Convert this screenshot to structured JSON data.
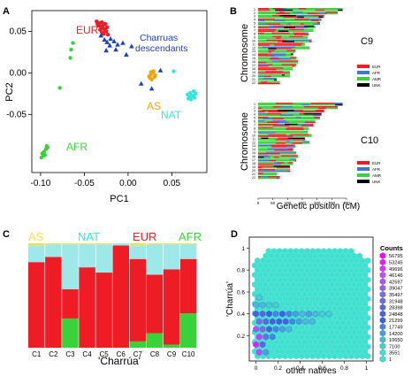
{
  "panel_letters": {
    "a": "A",
    "b": "B",
    "c": "C",
    "d": "D"
  },
  "colors": {
    "EUR": "#ee1c25",
    "AFR": "#39d23a",
    "AS": "#f4a30f",
    "NAT": "#33e6df",
    "Charruas": "#1f3fbf",
    "UNK": "#000000"
  },
  "chart_data": [
    {
      "panel": "A",
      "type": "scatter",
      "xlabel": "PC1",
      "ylabel": "PC2",
      "xlim": [
        -0.11,
        0.09
      ],
      "ylim": [
        -0.12,
        0.075
      ],
      "xticks": [
        -0.1,
        -0.05,
        0.0,
        0.05
      ],
      "xtick_labels": [
        "-0.10",
        "-0.05",
        "0.00",
        "0.05"
      ],
      "yticks": [
        -0.05,
        0.0,
        0.05
      ],
      "ytick_labels": [
        "-0.05",
        "0.00",
        "0.05"
      ],
      "labels": [
        {
          "text": "EUR",
          "color": "#ee1c25"
        },
        {
          "text": "Charruas\ndescendants",
          "color": "#1f3fbf"
        },
        {
          "text": "AS",
          "color": "#f4a30f"
        },
        {
          "text": "NAT",
          "color": "#33e6df"
        },
        {
          "text": "AFR",
          "color": "#39d23a"
        }
      ],
      "series": [
        {
          "group": "EUR",
          "marker": "circle",
          "color": "#ee1c25",
          "x": [
            -0.036,
            -0.033,
            -0.03,
            -0.028,
            -0.026,
            -0.024,
            -0.034,
            -0.031,
            -0.029,
            -0.027,
            -0.025,
            -0.032,
            -0.03,
            -0.028,
            -0.026,
            -0.035,
            -0.023
          ],
          "y": [
            0.062,
            0.06,
            0.061,
            0.058,
            0.059,
            0.055,
            0.057,
            0.056,
            0.054,
            0.053,
            0.05,
            0.052,
            0.049,
            0.047,
            0.051,
            0.059,
            0.046
          ]
        },
        {
          "group": "Charruas",
          "marker": "triangle",
          "color": "#1f3fbf",
          "x": [
            -0.031,
            -0.027,
            -0.024,
            -0.021,
            -0.02,
            -0.016,
            -0.012,
            -0.006,
            0.004,
            -0.002,
            -0.025,
            0.037,
            0.015,
            0.027,
            -0.014
          ],
          "y": [
            0.045,
            0.04,
            0.037,
            0.033,
            0.041,
            0.038,
            0.034,
            0.036,
            0.032,
            0.022,
            0.027,
            0.003,
            -0.013,
            -0.019,
            0.028
          ]
        },
        {
          "group": "AS",
          "marker": "circle",
          "color": "#f4a30f",
          "x": [
            0.024,
            0.026,
            0.028,
            0.03,
            0.027,
            0.025,
            0.029,
            0.031,
            0.026
          ],
          "y": [
            -0.004,
            -0.002,
            0.0,
            -0.005,
            -0.008,
            -0.006,
            0.002,
            -0.003,
            0.001
          ]
        },
        {
          "group": "NAT",
          "marker": "circle",
          "color": "#33e6df",
          "x": [
            0.068,
            0.071,
            0.074,
            0.076,
            0.072,
            0.07,
            0.075,
            0.073,
            0.069,
            0.077,
            0.052
          ],
          "y": [
            -0.026,
            -0.024,
            -0.028,
            -0.03,
            -0.032,
            -0.029,
            -0.022,
            -0.027,
            -0.031,
            -0.025,
            0.002
          ]
        },
        {
          "group": "AFR",
          "marker": "circle",
          "color": "#39d23a",
          "x": [
            -0.098,
            -0.096,
            -0.094,
            -0.093,
            -0.097,
            -0.095,
            -0.099,
            -0.092,
            -0.065,
            -0.063,
            -0.066,
            -0.078
          ],
          "y": [
            -0.097,
            -0.095,
            -0.092,
            -0.088,
            -0.1,
            -0.099,
            -0.102,
            -0.09,
            0.028,
            0.036,
            0.018,
            -0.018
          ]
        }
      ]
    },
    {
      "panel": "B",
      "type": "bar",
      "subtype": "chromosome-painting",
      "ylabel": "Chromosome",
      "xlabel": "Genetic position (cM)",
      "xlim": [
        0,
        300
      ],
      "xticks": [
        0,
        50,
        100,
        150,
        200,
        250,
        300
      ],
      "chromosomes": [
        "1",
        "2",
        "3",
        "4",
        "5",
        "6",
        "7",
        "8",
        "9",
        "10",
        "11",
        "12",
        "13",
        "14",
        "15",
        "16",
        "17",
        "18",
        "19",
        "20",
        "21",
        "22"
      ],
      "chromosome_lengths_cM": [
        286,
        269,
        223,
        214,
        209,
        193,
        187,
        170,
        168,
        181,
        158,
        174,
        126,
        118,
        128,
        134,
        128,
        117,
        107,
        108,
        62,
        73
      ],
      "legend": [
        "EUR",
        "AFR",
        "AMR",
        "UNK"
      ],
      "legend_colors": [
        "#ee1c25",
        "#3f76d6",
        "#39d23a",
        "#000000"
      ],
      "samples": [
        {
          "name": "C9",
          "pattern": [
            0.18,
            0.12,
            0.24,
            0.1,
            0.14,
            0.22
          ]
        },
        {
          "name": "C10",
          "pattern": [
            0.2,
            0.1,
            0.16,
            0.14,
            0.22,
            0.18
          ]
        }
      ]
    },
    {
      "panel": "C",
      "type": "bar",
      "subtype": "stacked",
      "xlabel": "'Charrúa'",
      "categories": [
        "C1",
        "C2",
        "C3",
        "C4",
        "C5",
        "C6",
        "C7",
        "C8",
        "C9",
        "C10"
      ],
      "header_labels": [
        {
          "text": "AS",
          "color": "#f4e04a"
        },
        {
          "text": "NAT",
          "color": "#33e6df"
        },
        {
          "text": "EUR",
          "color": "#ee1c25"
        },
        {
          "text": "AFR",
          "color": "#39d23a"
        }
      ],
      "series": [
        {
          "name": "AFR",
          "color": "#39d23a",
          "values": [
            0.0,
            0.0,
            0.28,
            0.0,
            0.0,
            0.0,
            0.06,
            0.14,
            0.03,
            0.33
          ]
        },
        {
          "name": "EUR",
          "color": "#ee1c25",
          "values": [
            0.82,
            0.87,
            0.28,
            0.77,
            0.72,
            0.98,
            0.79,
            0.56,
            0.72,
            0.52
          ]
        },
        {
          "name": "NAT",
          "color": "#9ee8ea",
          "values": [
            0.16,
            0.12,
            0.43,
            0.22,
            0.27,
            0.02,
            0.13,
            0.29,
            0.24,
            0.14
          ]
        },
        {
          "name": "AS",
          "color": "#f4e04a",
          "values": [
            0.02,
            0.01,
            0.01,
            0.01,
            0.01,
            0.0,
            0.02,
            0.01,
            0.01,
            0.01
          ]
        }
      ]
    },
    {
      "panel": "D",
      "type": "heatmap",
      "subtype": "hexbin",
      "xlabel": "other natives",
      "ylabel": "'Charrúa'",
      "xlim": [
        -0.06,
        1.06
      ],
      "ylim": [
        -0.03,
        1.1
      ],
      "xticks": [
        0,
        0.2,
        0.4,
        0.6,
        0.8,
        1
      ],
      "xtick_labels": [
        "0",
        "0.2",
        "0.4",
        "0.6",
        "0.8",
        "1"
      ],
      "yticks": [
        0.2,
        0.4,
        0.6,
        0.8,
        1
      ],
      "ytick_labels": [
        "0.2",
        "0.4",
        "0.6",
        "0.8",
        "1"
      ],
      "background_color": "#40e0d0",
      "legend_title": "Counts",
      "legend_counts": [
        "56795",
        "53245",
        "49696",
        "46146",
        "42597",
        "39047",
        "35497",
        "31948",
        "28398",
        "24848",
        "21299",
        "17749",
        "14200",
        "10650",
        "7100",
        "3551",
        "1"
      ],
      "legend_colors": [
        "#ff00ff",
        "#f018ff",
        "#e030ff",
        "#cc44ff",
        "#b055f5",
        "#9660ee",
        "#7e6ae6",
        "#6a6ee0",
        "#5a66e0",
        "#4a5fe0",
        "#3c60e4",
        "#3f86e6",
        "#44a2e0",
        "#46bcd6",
        "#44d0d0",
        "#40e0d0",
        "#40e0d0"
      ],
      "dense_bins": [
        {
          "x": 0.0,
          "y": 0.4,
          "level": 9
        },
        {
          "x": 0.06,
          "y": 0.4,
          "level": 8
        },
        {
          "x": 0.12,
          "y": 0.4,
          "level": 10
        },
        {
          "x": 0.18,
          "y": 0.4,
          "level": 11
        },
        {
          "x": 0.24,
          "y": 0.4,
          "level": 10
        },
        {
          "x": 0.3,
          "y": 0.4,
          "level": 11
        },
        {
          "x": 0.36,
          "y": 0.4,
          "level": 12
        },
        {
          "x": 0.42,
          "y": 0.4,
          "level": 13
        },
        {
          "x": 0.48,
          "y": 0.4,
          "level": 12
        },
        {
          "x": 0.54,
          "y": 0.4,
          "level": 13
        },
        {
          "x": 0.6,
          "y": 0.4,
          "level": 14
        },
        {
          "x": 0.66,
          "y": 0.4,
          "level": 14
        },
        {
          "x": 0.03,
          "y": 0.33,
          "level": 6
        },
        {
          "x": 0.09,
          "y": 0.33,
          "level": 8
        },
        {
          "x": 0.15,
          "y": 0.33,
          "level": 9
        },
        {
          "x": 0.21,
          "y": 0.33,
          "level": 10
        },
        {
          "x": 0.27,
          "y": 0.33,
          "level": 9
        },
        {
          "x": 0.33,
          "y": 0.33,
          "level": 11
        },
        {
          "x": 0.39,
          "y": 0.33,
          "level": 12
        },
        {
          "x": 0.45,
          "y": 0.33,
          "level": 13
        },
        {
          "x": 0.51,
          "y": 0.33,
          "level": 13
        },
        {
          "x": 0.0,
          "y": 0.26,
          "level": 4
        },
        {
          "x": 0.06,
          "y": 0.26,
          "level": 6
        },
        {
          "x": 0.12,
          "y": 0.26,
          "level": 9
        },
        {
          "x": 0.18,
          "y": 0.26,
          "level": 11
        },
        {
          "x": 0.24,
          "y": 0.26,
          "level": 12
        },
        {
          "x": 0.3,
          "y": 0.26,
          "level": 13
        },
        {
          "x": 0.03,
          "y": 0.19,
          "level": 2
        },
        {
          "x": 0.09,
          "y": 0.19,
          "level": 7
        },
        {
          "x": 0.15,
          "y": 0.19,
          "level": 11
        },
        {
          "x": 0.0,
          "y": 0.12,
          "level": 1
        },
        {
          "x": 0.06,
          "y": 0.12,
          "level": 8
        },
        {
          "x": 0.03,
          "y": 0.05,
          "level": 3
        },
        {
          "x": 0.09,
          "y": 0.05,
          "level": 12
        },
        {
          "x": 0.0,
          "y": 0.48,
          "level": 13
        },
        {
          "x": 0.06,
          "y": 0.48,
          "level": 13
        },
        {
          "x": 0.12,
          "y": 0.48,
          "level": 14
        },
        {
          "x": 0.18,
          "y": 0.48,
          "level": 14
        },
        {
          "x": 0.03,
          "y": 0.55,
          "level": 14
        }
      ]
    }
  ]
}
